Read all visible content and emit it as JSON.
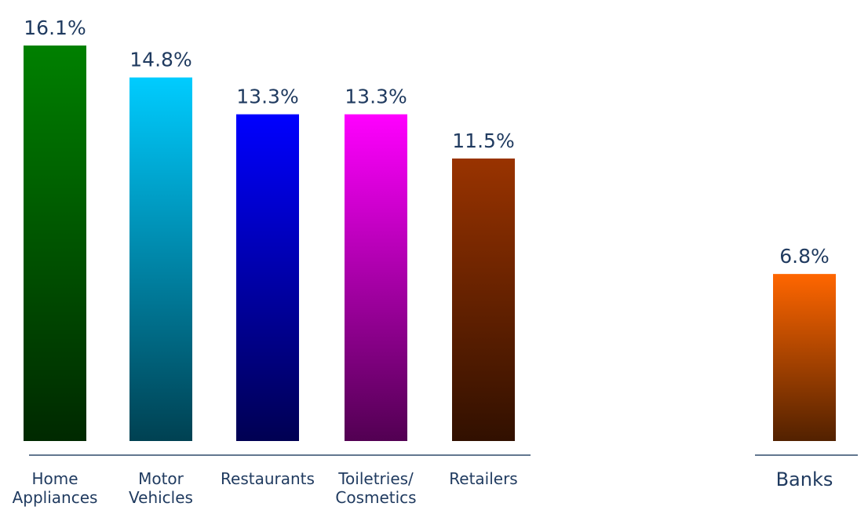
{
  "chart_data": [
    {
      "type": "bar",
      "categories": [
        [
          "Home",
          "Appliances"
        ],
        [
          "Motor",
          "Vehicles"
        ],
        [
          "Restaurants"
        ],
        [
          "Toiletries/",
          "Cosmetics"
        ],
        [
          "Retailers"
        ]
      ],
      "values": [
        16.1,
        14.8,
        13.3,
        13.3,
        11.5
      ],
      "value_labels": [
        "16.1%",
        "14.8%",
        "13.3%",
        "13.3%",
        "11.5%"
      ],
      "colors": [
        "#008000",
        "#00ccff",
        "#0000ff",
        "#ff00ff",
        "#993300"
      ],
      "ylim": [
        0,
        16.1
      ]
    },
    {
      "type": "bar",
      "categories": [
        [
          "Banks"
        ]
      ],
      "values": [
        6.8
      ],
      "value_labels": [
        "6.8%"
      ],
      "colors": [
        "#ff6600"
      ],
      "ylim": [
        0,
        16.1
      ]
    }
  ]
}
